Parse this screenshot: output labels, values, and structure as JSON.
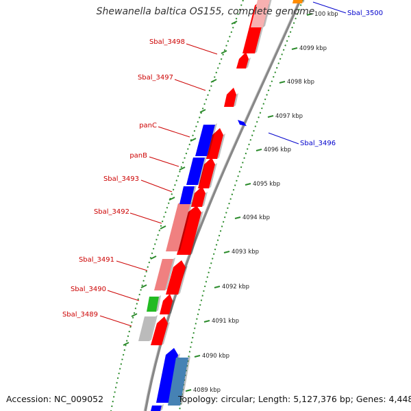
{
  "title": "Shewanella baltica OS155, complete genome",
  "footer": {
    "accession": "Accession: NC_009052",
    "summary": "Topology: circular; Length: 5,127,376 bp; Genes: 4,448"
  },
  "colors": {
    "forward_cds": "#ff0000",
    "forward_light": "#f08080",
    "reverse_cds": "#0000ff",
    "reverse_light": "#4682b4",
    "rna_green": "#22bb22",
    "pseudo_grey": "#bbbbbb",
    "orange": "#ff8c00",
    "backbone": "#888888",
    "tick_mark": "#2a8a2a",
    "forward_label": "#cc0000",
    "reverse_label": "#0000cc"
  },
  "tick_labels": [
    "100 kbp",
    "4099 kbp",
    "4098 kbp",
    "4097 kbp",
    "4096 kbp",
    "4095 kbp",
    "4094 kbp",
    "4093 kbp",
    "4092 kbp",
    "4091 kbp",
    "4090 kbp",
    "4089 kbp"
  ],
  "gene_labels": [
    {
      "text": "Sbal_3500",
      "strand": "reverse"
    },
    {
      "text": "Sbal_3498",
      "strand": "forward"
    },
    {
      "text": "Sbal_3497",
      "strand": "forward"
    },
    {
      "text": "Sbal_3496",
      "strand": "reverse"
    },
    {
      "text": "panC",
      "strand": "forward"
    },
    {
      "text": "panB",
      "strand": "forward"
    },
    {
      "text": "Sbal_3493",
      "strand": "forward"
    },
    {
      "text": "Sbal_3492",
      "strand": "forward"
    },
    {
      "text": "Sbal_3491",
      "strand": "forward"
    },
    {
      "text": "Sbal_3490",
      "strand": "forward"
    },
    {
      "text": "Sbal_3489",
      "strand": "forward"
    }
  ]
}
